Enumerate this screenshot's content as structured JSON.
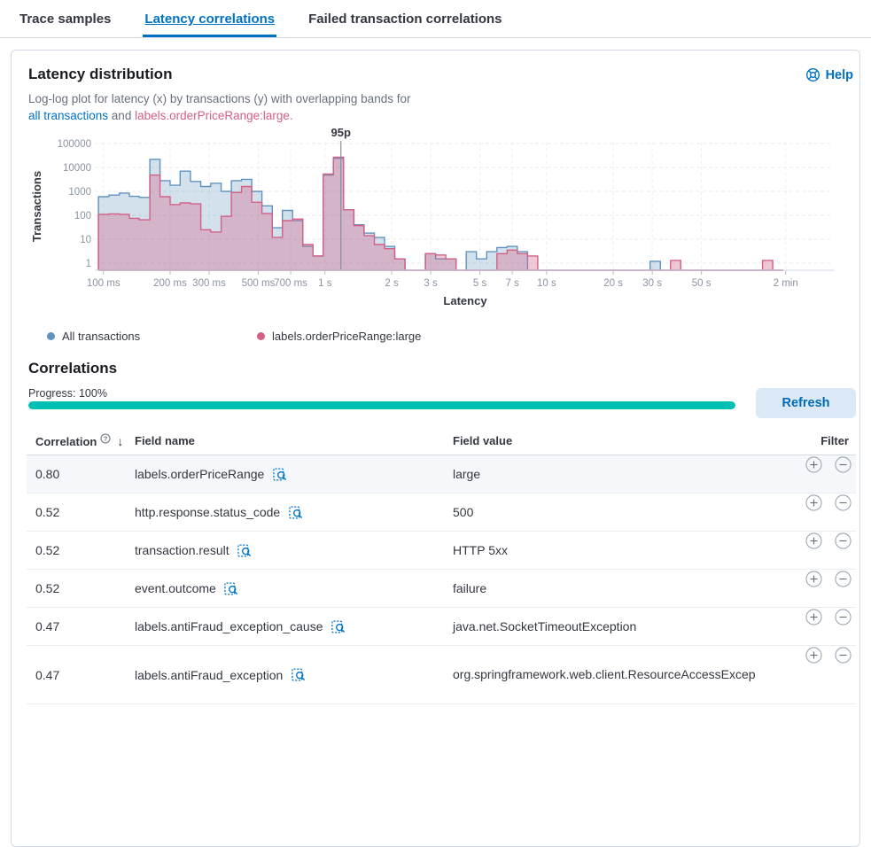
{
  "tabs": [
    {
      "label": "Trace samples",
      "active": false
    },
    {
      "label": "Latency correlations",
      "active": true
    },
    {
      "label": "Failed transaction correlations",
      "active": false
    }
  ],
  "panel": {
    "title": "Latency distribution",
    "help_label": "Help",
    "description": {
      "line1": "Log-log plot for latency (x) by transactions (y) with overlapping bands for",
      "link_all": "all transactions",
      "connector": " and ",
      "link_subset": "labels.orderPriceRange:large",
      "period": "."
    }
  },
  "legend": [
    {
      "label": "All transactions",
      "color": "#6092C0"
    },
    {
      "label": "labels.orderPriceRange:large",
      "color": "#D36086"
    }
  ],
  "chart_data": {
    "type": "area",
    "subtype": "log-log overlapping step histograms",
    "title": "",
    "xlabel": "Latency",
    "ylabel": "Transactions",
    "x_ticks": [
      "100 ms",
      "200 ms",
      "300 ms",
      "500 ms",
      "700 ms",
      "1 s",
      "2 s",
      "3 s",
      "5 s",
      "7 s",
      "10 s",
      "20 s",
      "30 s",
      "50 s",
      "2 min"
    ],
    "x_tick_ms": [
      100,
      200,
      300,
      500,
      700,
      1000,
      2000,
      3000,
      5000,
      7000,
      10000,
      20000,
      30000,
      50000,
      120000
    ],
    "y_ticks": [
      1,
      10,
      100,
      1000,
      10000,
      100000
    ],
    "xlim_ms": [
      94,
      196000
    ],
    "ylim": [
      1,
      100000
    ],
    "grid": "dashed",
    "legend_position": "bottom",
    "annotation": {
      "label": "95p",
      "x_ms": 1180
    },
    "bins_ms": [
      95,
      106,
      118,
      131,
      145,
      162,
      180,
      200,
      222,
      247,
      275,
      305,
      340,
      378,
      420,
      467,
      519,
      578,
      642,
      714,
      794,
      883,
      982,
      1092,
      1214,
      1350,
      1501,
      1670,
      1857,
      2065,
      2296,
      2553,
      2839,
      3157,
      3510,
      3903,
      4341,
      4827,
      5367,
      5968,
      6637,
      7380,
      8207,
      9126,
      10148,
      11285,
      12549,
      13954,
      15517,
      17255,
      19187,
      21336,
      23726,
      26383,
      29338,
      32624,
      36278,
      40341,
      44859,
      49883,
      55470,
      61681,
      68589,
      76270,
      84812,
      94311,
      104874
    ],
    "series": [
      {
        "name": "All transactions",
        "color": "#6092C0",
        "fill_opacity": 0.28,
        "values": [
          600,
          700,
          850,
          620,
          560,
          22000,
          2800,
          1800,
          7000,
          2600,
          1600,
          2200,
          1000,
          2800,
          3200,
          1000,
          250,
          30,
          160,
          60,
          5,
          2,
          4800,
          24000,
          170,
          40,
          18,
          12,
          5,
          1.5,
          0,
          0,
          2.5,
          1.5,
          1.5,
          0,
          3,
          1.5,
          3,
          4.5,
          5,
          3,
          0,
          0,
          0,
          0,
          0,
          0,
          0,
          0,
          0,
          0,
          0,
          0,
          1.2,
          0,
          0,
          0,
          0,
          0,
          0,
          0,
          0,
          0,
          0,
          0,
          0
        ]
      },
      {
        "name": "labels.orderPriceRange:large",
        "color": "#D36086",
        "fill_opacity": 0.35,
        "values": [
          110,
          115,
          110,
          75,
          65,
          4800,
          600,
          280,
          330,
          300,
          25,
          20,
          90,
          900,
          1600,
          350,
          120,
          12,
          60,
          70,
          6,
          2,
          5300,
          27000,
          170,
          37,
          14,
          6,
          4,
          1.5,
          0,
          0,
          2.5,
          2.2,
          1.5,
          0,
          0,
          0,
          0,
          2.5,
          3.5,
          2.5,
          2,
          0,
          0,
          0,
          0,
          0,
          0,
          0,
          0,
          0,
          0,
          0,
          0,
          0,
          1.3,
          0,
          0,
          0,
          0,
          0,
          0,
          0,
          0,
          1.3,
          0
        ]
      }
    ]
  },
  "correlations": {
    "title": "Correlations",
    "progress_label": "Progress: 100%",
    "progress_percent": 100,
    "refresh_label": "Refresh",
    "table": {
      "columns": [
        "Correlation",
        "Field name",
        "Field value",
        "Filter"
      ],
      "rows": [
        {
          "correlation": "0.80",
          "field_name": "labels.orderPriceRange",
          "field_value": "large",
          "highlighted": true
        },
        {
          "correlation": "0.52",
          "field_name": "http.response.status_code",
          "field_value": "500",
          "highlighted": false
        },
        {
          "correlation": "0.52",
          "field_name": "transaction.result",
          "field_value": "HTTP 5xx",
          "highlighted": false
        },
        {
          "correlation": "0.52",
          "field_name": "event.outcome",
          "field_value": "failure",
          "highlighted": false
        },
        {
          "correlation": "0.47",
          "field_name": "labels.antiFraud_exception_cause",
          "field_value": "java.net.SocketTimeoutException",
          "highlighted": false
        },
        {
          "correlation": "0.47",
          "field_name": "labels.antiFraud_exception",
          "field_value": "org.springframework.web.client.ResourceAccessExcep",
          "highlighted": false,
          "tall": true
        }
      ]
    }
  },
  "icons": {
    "help": "life-ring-icon",
    "sort": "arrow-down-icon ↓",
    "correlation_tooltip": "question-in-circle-icon",
    "field_action": "inspect-magnifier-icon",
    "filter_in": "plus-in-circle-icon",
    "filter_out": "minus-in-circle-icon"
  },
  "colors": {
    "accent_blue": "#0071C2",
    "series_all": "#6092C0",
    "series_subset": "#D36086",
    "progress": "#00BFB3",
    "panel_border": "#D3DAE6",
    "row_highlight": "#F5F7FA",
    "text": "#343741",
    "muted_text": "#69707D"
  }
}
